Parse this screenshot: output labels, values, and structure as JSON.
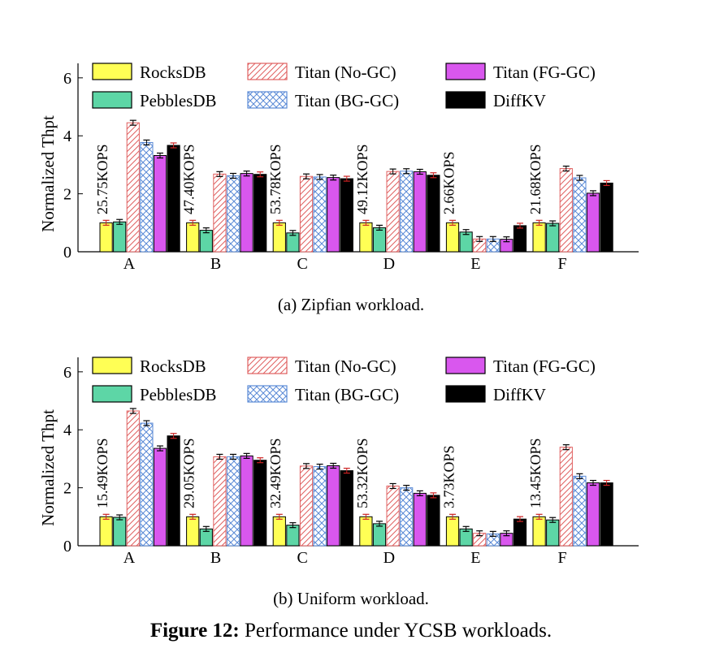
{
  "colors": {
    "RocksDB": "#ffff55",
    "PebblesDB": "#5dd6a6",
    "TitanNoGC": "#e06060",
    "TitanBGGC": "#5a8ad6",
    "TitanFGGC": "#d957ee",
    "DiffKV": "#000000",
    "error_bar": "#cc2222"
  },
  "chart_data": [
    {
      "type": "bar",
      "caption": "(a)  Zipfian workload.",
      "ylabel": "Normalized Thpt",
      "ylim": [
        0,
        6.5
      ],
      "yticks": [
        "0",
        "2",
        "4",
        "6"
      ],
      "grid": false,
      "legend_position": "top",
      "categories": [
        "A",
        "B",
        "C",
        "D",
        "E",
        "F"
      ],
      "annotations": [
        "25.75KOPS",
        "47.40KOPS",
        "53.78KOPS",
        "49.12KOPS",
        "2.66KOPS",
        "21.68KOPS"
      ],
      "series": [
        {
          "name": "RocksDB",
          "pattern": "solid",
          "values": [
            1.0,
            1.0,
            1.0,
            1.0,
            1.0,
            1.0
          ]
        },
        {
          "name": "PebblesDB",
          "pattern": "solid",
          "values": [
            1.03,
            0.74,
            0.65,
            0.83,
            0.68,
            0.98
          ]
        },
        {
          "name": "Titan (No-GC)",
          "pattern": "diagonal",
          "values": [
            4.45,
            2.68,
            2.6,
            2.77,
            0.44,
            2.87
          ]
        },
        {
          "name": "Titan (BG-GC)",
          "pattern": "crosshatch",
          "values": [
            3.77,
            2.62,
            2.58,
            2.78,
            0.44,
            2.55
          ]
        },
        {
          "name": "Titan (FG-GC)",
          "pattern": "solid",
          "values": [
            3.32,
            2.7,
            2.56,
            2.76,
            0.43,
            2.02
          ]
        },
        {
          "name": "DiffKV",
          "pattern": "solid",
          "values": [
            3.67,
            2.67,
            2.52,
            2.64,
            0.9,
            2.37
          ]
        }
      ]
    },
    {
      "type": "bar",
      "caption": "(b)  Uniform workload.",
      "ylabel": "Normalized Thpt",
      "ylim": [
        0,
        6.5
      ],
      "yticks": [
        "0",
        "2",
        "4",
        "6"
      ],
      "grid": false,
      "legend_position": "top",
      "categories": [
        "A",
        "B",
        "C",
        "D",
        "E",
        "F"
      ],
      "annotations": [
        "15.49KOPS",
        "29.05KOPS",
        "32.49KOPS",
        "53.32KOPS",
        "3.73KOPS",
        "13.45KOPS"
      ],
      "series": [
        {
          "name": "RocksDB",
          "pattern": "solid",
          "values": [
            1.0,
            1.0,
            1.0,
            1.0,
            1.0,
            1.0
          ]
        },
        {
          "name": "PebblesDB",
          "pattern": "solid",
          "values": [
            0.98,
            0.58,
            0.71,
            0.76,
            0.58,
            0.89
          ]
        },
        {
          "name": "Titan (No-GC)",
          "pattern": "diagonal",
          "values": [
            4.65,
            3.07,
            2.75,
            2.06,
            0.43,
            3.4
          ]
        },
        {
          "name": "Titan (BG-GC)",
          "pattern": "crosshatch",
          "values": [
            4.23,
            3.07,
            2.73,
            2.0,
            0.41,
            2.4
          ]
        },
        {
          "name": "Titan (FG-GC)",
          "pattern": "solid",
          "values": [
            3.36,
            3.1,
            2.76,
            1.81,
            0.43,
            2.17
          ]
        },
        {
          "name": "DiffKV",
          "pattern": "solid",
          "values": [
            3.79,
            2.95,
            2.59,
            1.74,
            0.92,
            2.17
          ]
        }
      ]
    }
  ],
  "figure_caption": {
    "label": "Figure 12:",
    "text": " Performance under YCSB workloads."
  }
}
